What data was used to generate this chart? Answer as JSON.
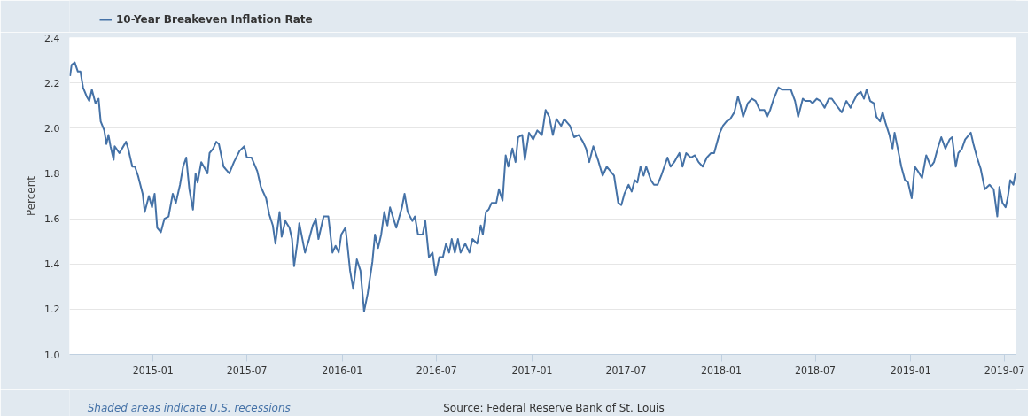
{
  "chart_data": {
    "type": "line",
    "ylabel": "Percent",
    "annotations": [
      "Shaded areas indicate U.S. recessions",
      "Source: Federal Reserve Bank of St. Louis"
    ],
    "xlim": [
      "2014-07-24",
      "2019-07-23"
    ],
    "ylim": [
      1.0,
      2.4
    ],
    "xticks": [
      "2015-01",
      "2015-07",
      "2016-01",
      "2016-07",
      "2017-01",
      "2017-07",
      "2018-01",
      "2018-07",
      "2019-01",
      "2019-07"
    ],
    "yticks": [
      {
        "value": 1.0,
        "label": "1.0"
      },
      1.2,
      1.4,
      1.6,
      1.8,
      {
        "value": 2.0,
        "label": "2.0"
      },
      2.2,
      2.4
    ],
    "grid": "y",
    "legend": "top left",
    "line_style": "solid",
    "series": [
      {
        "name": "10-Year Breakeven Inflation Rate",
        "color": "#4572a7",
        "x": [
          "2014-07-25",
          "2014-07-28",
          "2014-08-03",
          "2014-08-09",
          "2014-08-14",
          "2014-08-19",
          "2014-08-26",
          "2014-08-31",
          "2014-09-05",
          "2014-09-12",
          "2014-09-18",
          "2014-09-22",
          "2014-09-29",
          "2014-10-03",
          "2014-10-07",
          "2014-10-11",
          "2014-10-17",
          "2014-10-19",
          "2014-10-28",
          "2014-11-10",
          "2014-11-14",
          "2014-11-22",
          "2014-11-27",
          "2014-12-03",
          "2014-12-12",
          "2014-12-16",
          "2014-12-24",
          "2014-12-30",
          "2015-01-04",
          "2015-01-09",
          "2015-01-16",
          "2015-01-23",
          "2015-01-31",
          "2015-02-08",
          "2015-02-14",
          "2015-02-22",
          "2015-02-28",
          "2015-03-06",
          "2015-03-12",
          "2015-03-19",
          "2015-03-24",
          "2015-03-28",
          "2015-04-04",
          "2015-04-09",
          "2015-04-16",
          "2015-04-20",
          "2015-04-27",
          "2015-05-03",
          "2015-05-08",
          "2015-05-17",
          "2015-05-28",
          "2015-06-06",
          "2015-06-17",
          "2015-06-26",
          "2015-07-01",
          "2015-07-10",
          "2015-07-21",
          "2015-07-28",
          "2015-08-07",
          "2015-08-13",
          "2015-08-20",
          "2015-08-25",
          "2015-09-02",
          "2015-09-06",
          "2015-09-13",
          "2015-09-21",
          "2015-09-26",
          "2015-09-30",
          "2015-10-06",
          "2015-10-10",
          "2015-10-16",
          "2015-10-21",
          "2015-10-29",
          "2015-11-05",
          "2015-11-11",
          "2015-11-16",
          "2015-11-26",
          "2015-12-05",
          "2015-12-13",
          "2015-12-19",
          "2015-12-25",
          "2015-12-30",
          "2016-01-07",
          "2016-01-11",
          "2016-01-16",
          "2016-01-22",
          "2016-01-29",
          "2016-02-05",
          "2016-02-12",
          "2016-02-19",
          "2016-02-28",
          "2016-03-04",
          "2016-03-10",
          "2016-03-16",
          "2016-03-22",
          "2016-03-28",
          "2016-04-02",
          "2016-04-10",
          "2016-04-14",
          "2016-04-25",
          "2016-04-30",
          "2016-05-06",
          "2016-05-15",
          "2016-05-20",
          "2016-05-26",
          "2016-06-04",
          "2016-06-09",
          "2016-06-16",
          "2016-06-23",
          "2016-06-29",
          "2016-07-06",
          "2016-07-13",
          "2016-07-19",
          "2016-07-25",
          "2016-07-30",
          "2016-08-05",
          "2016-08-11",
          "2016-08-16",
          "2016-08-25",
          "2016-09-02",
          "2016-09-08",
          "2016-09-17",
          "2016-09-24",
          "2016-09-28",
          "2016-10-04",
          "2016-10-09",
          "2016-10-15",
          "2016-10-24",
          "2016-10-29",
          "2016-11-05",
          "2016-11-11",
          "2016-11-16",
          "2016-11-24",
          "2016-11-30",
          "2016-12-05",
          "2016-12-13",
          "2016-12-18",
          "2016-12-26",
          "2017-01-03",
          "2017-01-11",
          "2017-01-20",
          "2017-01-27",
          "2017-02-03",
          "2017-02-10",
          "2017-02-17",
          "2017-02-26",
          "2017-03-04",
          "2017-03-15",
          "2017-03-23",
          "2017-04-01",
          "2017-04-09",
          "2017-04-15",
          "2017-04-21",
          "2017-04-29",
          "2017-05-08",
          "2017-05-17",
          "2017-05-25",
          "2017-06-01",
          "2017-06-08",
          "2017-06-16",
          "2017-06-22",
          "2017-06-28",
          "2017-07-06",
          "2017-07-12",
          "2017-07-18",
          "2017-07-23",
          "2017-07-29",
          "2017-08-04",
          "2017-08-09",
          "2017-08-18",
          "2017-08-24",
          "2017-08-31",
          "2017-09-07",
          "2017-09-13",
          "2017-09-19",
          "2017-09-25",
          "2017-10-02",
          "2017-10-07",
          "2017-10-12",
          "2017-10-18",
          "2017-10-25",
          "2017-11-03",
          "2017-11-11",
          "2017-11-18",
          "2017-11-26",
          "2017-12-04",
          "2017-12-12",
          "2017-12-18",
          "2017-12-24",
          "2017-12-29",
          "2018-01-04",
          "2018-01-11",
          "2018-01-18",
          "2018-01-26",
          "2018-02-02",
          "2018-02-07",
          "2018-02-12",
          "2018-02-21",
          "2018-03-01",
          "2018-03-08",
          "2018-03-16",
          "2018-03-25",
          "2018-03-30",
          "2018-04-05",
          "2018-04-12",
          "2018-04-21",
          "2018-04-28",
          "2018-05-06",
          "2018-05-15",
          "2018-05-23",
          "2018-05-29",
          "2018-06-07",
          "2018-06-12",
          "2018-06-21",
          "2018-06-26",
          "2018-07-04",
          "2018-07-11",
          "2018-07-19",
          "2018-07-27",
          "2018-08-02",
          "2018-08-11",
          "2018-08-21",
          "2018-08-30",
          "2018-09-07",
          "2018-09-11",
          "2018-09-20",
          "2018-09-27",
          "2018-10-03",
          "2018-10-08",
          "2018-10-15",
          "2018-10-22",
          "2018-10-27",
          "2018-11-03",
          "2018-11-08",
          "2018-11-14",
          "2018-11-21",
          "2018-11-27",
          "2018-12-01",
          "2018-12-08",
          "2018-12-14",
          "2018-12-21",
          "2018-12-27",
          "2019-01-03",
          "2019-01-09",
          "2019-01-15",
          "2019-01-23",
          "2019-01-31",
          "2019-02-09",
          "2019-02-15",
          "2019-02-22",
          "2019-03-01",
          "2019-03-09",
          "2019-03-17",
          "2019-03-22",
          "2019-03-29",
          "2019-04-03",
          "2019-04-10",
          "2019-04-16",
          "2019-04-27",
          "2019-05-02",
          "2019-05-09",
          "2019-05-16",
          "2019-05-24",
          "2019-06-02",
          "2019-06-10",
          "2019-06-17",
          "2019-06-21",
          "2019-06-27",
          "2019-07-03",
          "2019-07-07",
          "2019-07-12",
          "2019-07-18",
          "2019-07-22"
        ],
        "values": [
          2.23,
          2.28,
          2.29,
          2.25,
          2.25,
          2.18,
          2.14,
          2.12,
          2.17,
          2.11,
          2.13,
          2.03,
          1.99,
          1.93,
          1.97,
          1.92,
          1.86,
          1.92,
          1.89,
          1.94,
          1.91,
          1.83,
          1.83,
          1.79,
          1.71,
          1.63,
          1.7,
          1.65,
          1.71,
          1.56,
          1.54,
          1.6,
          1.61,
          1.71,
          1.67,
          1.75,
          1.83,
          1.87,
          1.73,
          1.64,
          1.8,
          1.76,
          1.85,
          1.83,
          1.8,
          1.89,
          1.91,
          1.94,
          1.93,
          1.83,
          1.8,
          1.85,
          1.9,
          1.92,
          1.87,
          1.87,
          1.81,
          1.74,
          1.69,
          1.62,
          1.57,
          1.49,
          1.63,
          1.52,
          1.59,
          1.56,
          1.51,
          1.39,
          1.49,
          1.58,
          1.51,
          1.45,
          1.51,
          1.57,
          1.6,
          1.51,
          1.61,
          1.61,
          1.45,
          1.48,
          1.45,
          1.53,
          1.56,
          1.48,
          1.37,
          1.29,
          1.42,
          1.37,
          1.19,
          1.27,
          1.41,
          1.53,
          1.47,
          1.53,
          1.63,
          1.57,
          1.65,
          1.59,
          1.56,
          1.65,
          1.71,
          1.63,
          1.59,
          1.61,
          1.53,
          1.53,
          1.59,
          1.43,
          1.45,
          1.35,
          1.43,
          1.43,
          1.49,
          1.45,
          1.51,
          1.45,
          1.51,
          1.45,
          1.49,
          1.45,
          1.51,
          1.49,
          1.57,
          1.53,
          1.63,
          1.64,
          1.67,
          1.67,
          1.73,
          1.68,
          1.88,
          1.83,
          1.91,
          1.85,
          1.96,
          1.97,
          1.86,
          1.98,
          1.95,
          1.99,
          1.97,
          2.08,
          2.05,
          1.97,
          2.04,
          2.01,
          2.04,
          2.01,
          1.96,
          1.97,
          1.94,
          1.91,
          1.85,
          1.92,
          1.86,
          1.79,
          1.83,
          1.81,
          1.79,
          1.67,
          1.66,
          1.71,
          1.75,
          1.72,
          1.77,
          1.76,
          1.83,
          1.79,
          1.83,
          1.77,
          1.75,
          1.75,
          1.79,
          1.83,
          1.87,
          1.83,
          1.85,
          1.87,
          1.89,
          1.83,
          1.89,
          1.87,
          1.88,
          1.85,
          1.83,
          1.87,
          1.89,
          1.89,
          1.94,
          1.98,
          2.01,
          2.03,
          2.04,
          2.07,
          2.14,
          2.1,
          2.05,
          2.11,
          2.13,
          2.12,
          2.08,
          2.08,
          2.05,
          2.08,
          2.13,
          2.18,
          2.17,
          2.17,
          2.17,
          2.12,
          2.05,
          2.13,
          2.12,
          2.12,
          2.11,
          2.13,
          2.12,
          2.09,
          2.13,
          2.13,
          2.1,
          2.07,
          2.12,
          2.09,
          2.11,
          2.15,
          2.16,
          2.13,
          2.17,
          2.12,
          2.11,
          2.05,
          2.03,
          2.07,
          2.02,
          1.97,
          1.91,
          1.98,
          1.9,
          1.83,
          1.77,
          1.76,
          1.69,
          1.83,
          1.81,
          1.78,
          1.88,
          1.83,
          1.85,
          1.91,
          1.96,
          1.91,
          1.95,
          1.96,
          1.83,
          1.89,
          1.91,
          1.95,
          1.98,
          1.93,
          1.87,
          1.82,
          1.73,
          1.75,
          1.73,
          1.61,
          1.74,
          1.67,
          1.65,
          1.69,
          1.77,
          1.75,
          1.8
        ]
      }
    ]
  }
}
